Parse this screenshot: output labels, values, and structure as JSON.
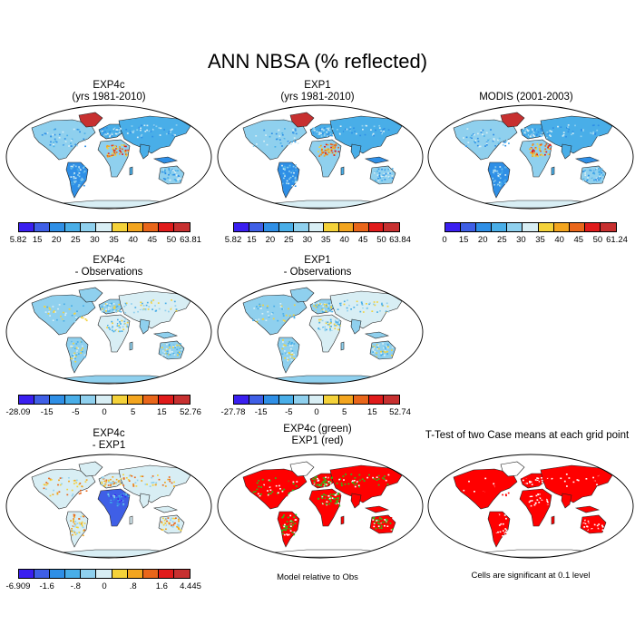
{
  "figure": {
    "title": "ANN NBSA (% reflected)"
  },
  "palette": [
    "#3a1ff0",
    "#3f5fe6",
    "#2f8fe6",
    "#49aee8",
    "#8fd0ee",
    "#d8eef4",
    "#f4d23a",
    "#f3a51f",
    "#e9661a",
    "#e01b1b",
    "#c73030"
  ],
  "colors": {
    "sig_red": "#ff0000",
    "sig_green": "#22c51a",
    "land_edge": "#222222",
    "frame": "#000000"
  },
  "panels": [
    {
      "id": "exp4c",
      "title_lines": [
        "EXP4c",
        "(yrs 1981-2010)"
      ],
      "style": "abs",
      "colorbar": {
        "labels": [
          "5.82",
          "15",
          "20",
          "25",
          "30",
          "35",
          "40",
          "45",
          "50",
          "63.81"
        ]
      }
    },
    {
      "id": "exp1",
      "title_lines": [
        "EXP1",
        "(yrs 1981-2010)"
      ],
      "style": "abs",
      "colorbar": {
        "labels": [
          "5.82",
          "15",
          "20",
          "25",
          "30",
          "35",
          "40",
          "45",
          "50",
          "63.84"
        ]
      }
    },
    {
      "id": "modis",
      "title_lines": [
        "MODIS (2001-2003)"
      ],
      "style": "obs",
      "colorbar": {
        "labels": [
          "0",
          "15",
          "20",
          "25",
          "30",
          "35",
          "40",
          "45",
          "50",
          "61.24"
        ]
      }
    },
    {
      "id": "exp4c-obs",
      "title_lines": [
        "EXP4c",
        "- Observations"
      ],
      "style": "diff",
      "colorbar": {
        "labels": [
          "-28.09",
          "-15",
          "-5",
          "0",
          "5",
          "15",
          "52.76"
        ]
      }
    },
    {
      "id": "exp1-obs",
      "title_lines": [
        "EXP1",
        "- Observations"
      ],
      "style": "diff",
      "colorbar": {
        "labels": [
          "-27.78",
          "-15",
          "-5",
          "0",
          "5",
          "15",
          "52.74"
        ]
      }
    },
    {
      "id": "exp4c-exp1",
      "title_lines": [
        "EXP4c",
        "- EXP1"
      ],
      "style": "delta",
      "colorbar": {
        "labels": [
          "-6.909",
          "-1.6",
          "-.8",
          "0",
          ".8",
          "1.6",
          "4.445"
        ]
      }
    },
    {
      "id": "rel-obs",
      "title_lines": [
        "EXP4c (green)",
        "EXP1 (red)"
      ],
      "style": "green_red",
      "note": "Model relative to Obs"
    },
    {
      "id": "ttest",
      "title_lines": [
        "T-Test of two Case means at each grid point"
      ],
      "style": "red",
      "note": "Cells are significant at 0.1 level"
    }
  ]
}
